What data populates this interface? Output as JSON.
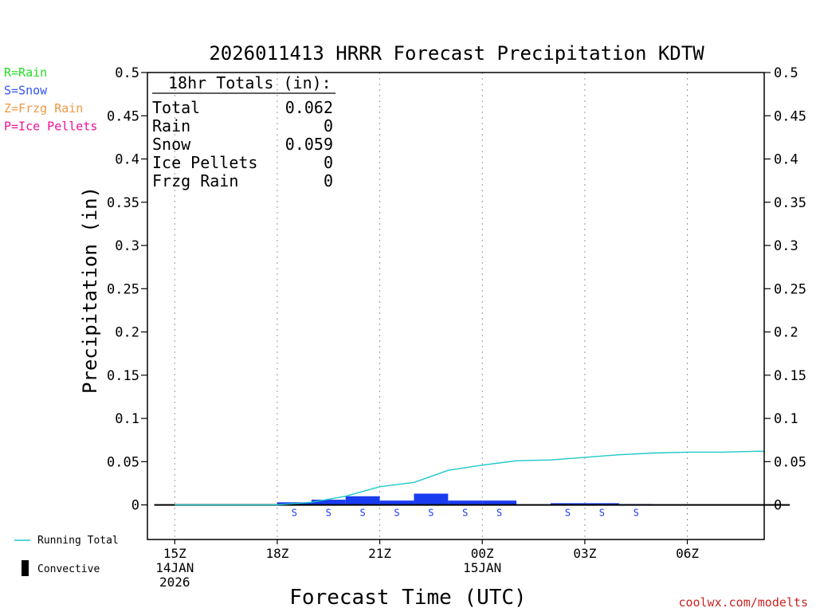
{
  "chart_data": {
    "type": "bar",
    "title": "2026011413 HRRR Forecast Precipitation KDTW",
    "xlabel": "Forecast Time (UTC)",
    "ylabel": "Precipitation (in)",
    "ylim": [
      -0.04,
      0.5
    ],
    "yticks": [
      0,
      0.05,
      0.1,
      0.15,
      0.2,
      0.25,
      0.3,
      0.35,
      0.4,
      0.45,
      0.5
    ],
    "ytick_labels": [
      "0",
      "0.05",
      "0.1",
      "0.15",
      "0.2",
      "0.25",
      "0.3",
      "0.35",
      "0.4",
      "0.45",
      "0.5"
    ],
    "x_domain_hours": [
      -0.8,
      17.25
    ],
    "x_ticks": [
      {
        "hour": 0,
        "lines": [
          "15Z",
          "14JAN",
          "2026"
        ]
      },
      {
        "hour": 3,
        "lines": [
          "18Z"
        ]
      },
      {
        "hour": 6,
        "lines": [
          "21Z"
        ]
      },
      {
        "hour": 9,
        "lines": [
          "00Z",
          "15JAN"
        ]
      },
      {
        "hour": 12,
        "lines": [
          "03Z"
        ]
      },
      {
        "hour": 15,
        "lines": [
          "06Z"
        ]
      }
    ],
    "hours": [
      0,
      1,
      2,
      3,
      4,
      5,
      6,
      7,
      8,
      9,
      10,
      11,
      12,
      13,
      14,
      15,
      16,
      17,
      18
    ],
    "hourly_precip": [
      0,
      0,
      0,
      0,
      0.003,
      0.006,
      0.01,
      0.005,
      0.013,
      0.005,
      0.005,
      0,
      0.002,
      0.002,
      0.001,
      0,
      0,
      0,
      0
    ],
    "precip_type": [
      "",
      "",
      "",
      "",
      "S",
      "S",
      "S",
      "S",
      "S",
      "S",
      "S",
      "",
      "S",
      "S",
      "S",
      "",
      "",
      "",
      ""
    ],
    "running_total": [
      0,
      0,
      0,
      0,
      0.003,
      0.01,
      0.021,
      0.026,
      0.04,
      0.046,
      0.051,
      0.052,
      0.055,
      0.058,
      0.06,
      0.061,
      0.061,
      0.062,
      0.062
    ],
    "running_total_color": "#1ec8c8",
    "snow_color": "#1a3cf0",
    "totals_box": {
      "header": "18hr Totals (in):",
      "rows": [
        {
          "label": "Total",
          "value": "0.062"
        },
        {
          "label": "Rain",
          "value": "0"
        },
        {
          "label": "Snow",
          "value": "0.059"
        },
        {
          "label": "Ice Pellets",
          "value": "0"
        },
        {
          "label": "Frzg Rain",
          "value": "0"
        }
      ]
    },
    "type_legend": [
      {
        "text": "R=Rain",
        "color": "#22dd22"
      },
      {
        "text": "S=Snow",
        "color": "#3355ee"
      },
      {
        "text": "Z=Frzg Rain",
        "color": "#ee9944"
      },
      {
        "text": "P=Ice Pellets",
        "color": "#ee1199"
      }
    ],
    "bottom_legend": {
      "running_total": "Running Total",
      "convective": "Convective"
    },
    "credit": "coolwx.com/modelts",
    "credit_color": "#cc2222"
  }
}
